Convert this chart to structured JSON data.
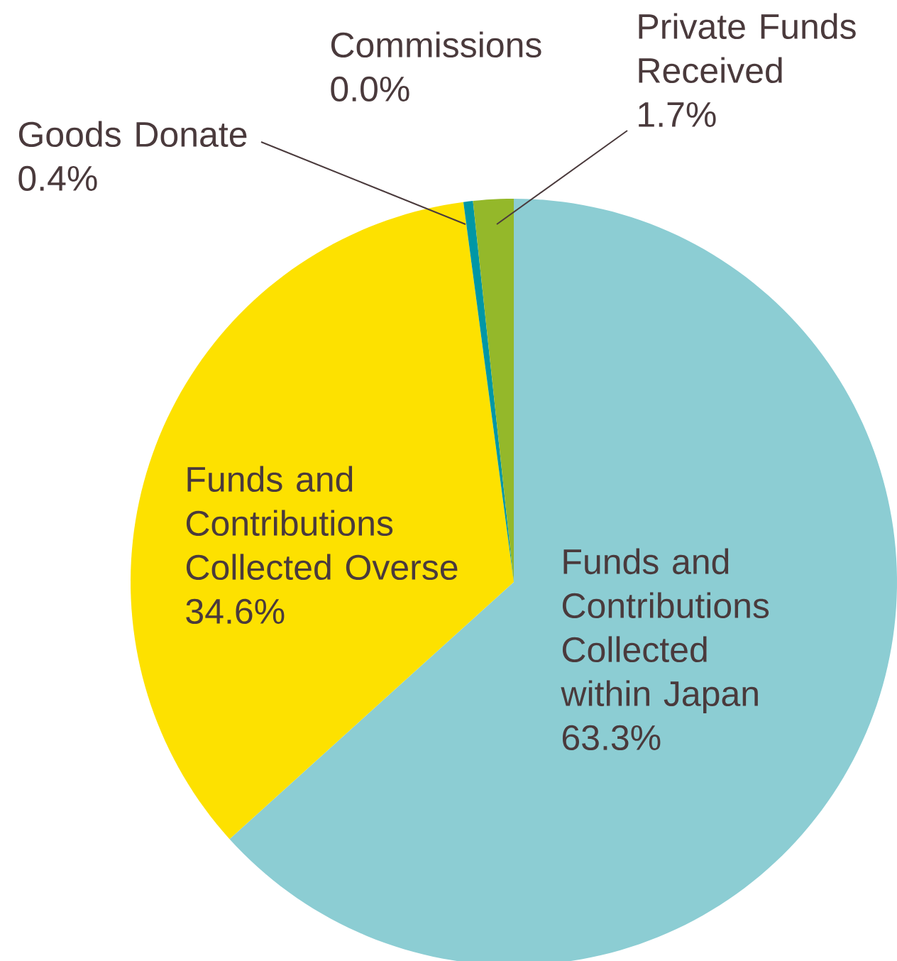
{
  "chart_data": {
    "type": "pie",
    "categories": [
      "Funds and Contributions Collected within Japan",
      "Funds and Contributions Collected Overse",
      "Goods Donate",
      "Commissions",
      "Private Funds Received"
    ],
    "values": [
      63.3,
      34.6,
      0.4,
      0.0,
      1.7
    ],
    "value_labels": [
      "63.3%",
      "34.6%",
      "0.4%",
      "0.0%",
      "1.7%"
    ],
    "colors": [
      "#8ccdd3",
      "#fde100",
      "#0097a5",
      "#2f6f8f",
      "#94b82a"
    ]
  }
}
